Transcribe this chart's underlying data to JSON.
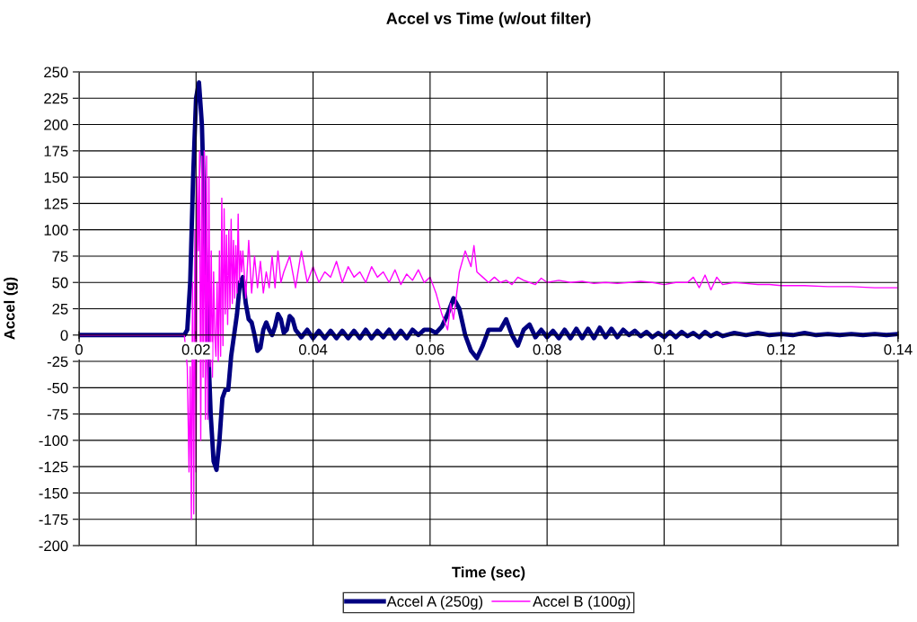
{
  "chart_data": {
    "type": "line",
    "title": "Accel vs Time (w/out filter)",
    "xlabel": "Time (sec)",
    "ylabel": "Accel (g)",
    "xlim": [
      0,
      0.14
    ],
    "xticks": [
      0,
      0.02,
      0.04,
      0.06,
      0.08,
      0.1,
      0.12,
      0.14
    ],
    "ylim": [
      -200,
      250
    ],
    "yticks": [
      -200,
      -175,
      -150,
      -125,
      -100,
      -75,
      -50,
      -25,
      0,
      25,
      50,
      75,
      100,
      125,
      150,
      175,
      200,
      225,
      250
    ],
    "grid": true,
    "legend": "bottom",
    "line_style": "solid",
    "marker": "none",
    "series": [
      {
        "name": "Accel A (250g)",
        "color": "#000080",
        "x": [
          0,
          0.018,
          0.0185,
          0.019,
          0.0195,
          0.02,
          0.0205,
          0.021,
          0.0215,
          0.022,
          0.0225,
          0.023,
          0.0235,
          0.024,
          0.0245,
          0.025,
          0.0255,
          0.026,
          0.027,
          0.0275,
          0.028,
          0.0285,
          0.029,
          0.0295,
          0.03,
          0.0305,
          0.031,
          0.0315,
          0.032,
          0.0325,
          0.033,
          0.0335,
          0.034,
          0.0345,
          0.035,
          0.0355,
          0.036,
          0.0365,
          0.037,
          0.038,
          0.039,
          0.04,
          0.041,
          0.042,
          0.043,
          0.044,
          0.045,
          0.046,
          0.047,
          0.048,
          0.049,
          0.05,
          0.051,
          0.052,
          0.053,
          0.054,
          0.055,
          0.056,
          0.057,
          0.058,
          0.059,
          0.06,
          0.061,
          0.062,
          0.063,
          0.064,
          0.065,
          0.066,
          0.067,
          0.068,
          0.069,
          0.07,
          0.071,
          0.072,
          0.073,
          0.074,
          0.075,
          0.076,
          0.077,
          0.078,
          0.079,
          0.08,
          0.081,
          0.082,
          0.083,
          0.084,
          0.085,
          0.086,
          0.087,
          0.088,
          0.089,
          0.09,
          0.091,
          0.092,
          0.093,
          0.094,
          0.095,
          0.096,
          0.097,
          0.098,
          0.099,
          0.1,
          0.101,
          0.102,
          0.103,
          0.104,
          0.105,
          0.106,
          0.107,
          0.108,
          0.109,
          0.11,
          0.112,
          0.114,
          0.116,
          0.118,
          0.12,
          0.122,
          0.124,
          0.126,
          0.128,
          0.13,
          0.132,
          0.134,
          0.136,
          0.138,
          0.14
        ],
        "values": [
          0,
          0,
          5,
          50,
          150,
          225,
          240,
          200,
          100,
          0,
          -75,
          -120,
          -128,
          -100,
          -60,
          -52,
          -52,
          -20,
          20,
          50,
          55,
          30,
          15,
          12,
          0,
          -15,
          -12,
          5,
          12,
          5,
          0,
          8,
          20,
          15,
          2,
          5,
          18,
          15,
          5,
          -2,
          5,
          -3,
          4,
          -3,
          4,
          -3,
          4,
          -3,
          4,
          -3,
          5,
          -3,
          4,
          -2,
          5,
          -3,
          4,
          -3,
          5,
          0,
          5,
          5,
          2,
          8,
          20,
          35,
          25,
          0,
          -15,
          -22,
          -10,
          5,
          5,
          5,
          15,
          0,
          -10,
          5,
          10,
          -2,
          5,
          -2,
          4,
          -3,
          5,
          -3,
          6,
          -3,
          6,
          -3,
          7,
          -2,
          6,
          -2,
          5,
          0,
          4,
          -1,
          3,
          -2,
          2,
          -2,
          3,
          -2,
          3,
          -1,
          2,
          -2,
          3,
          -1,
          2,
          -1,
          2,
          0,
          2,
          0,
          1,
          0,
          2,
          0,
          1,
          0,
          1,
          0,
          1,
          0,
          1
        ]
      },
      {
        "name": "Accel B (100g)",
        "color": "#ff00ff",
        "x": [
          0,
          0.018,
          0.0185,
          0.0188,
          0.019,
          0.0192,
          0.0194,
          0.0196,
          0.0198,
          0.02,
          0.0202,
          0.0204,
          0.0206,
          0.0208,
          0.021,
          0.0212,
          0.0214,
          0.0216,
          0.0218,
          0.022,
          0.0222,
          0.0224,
          0.0226,
          0.0228,
          0.023,
          0.0232,
          0.0234,
          0.0236,
          0.0238,
          0.024,
          0.0242,
          0.0244,
          0.0246,
          0.0248,
          0.025,
          0.0252,
          0.0254,
          0.0256,
          0.0258,
          0.026,
          0.0262,
          0.0264,
          0.0266,
          0.0268,
          0.027,
          0.0272,
          0.0274,
          0.0276,
          0.0278,
          0.028,
          0.0285,
          0.029,
          0.0295,
          0.03,
          0.0305,
          0.031,
          0.0315,
          0.032,
          0.0325,
          0.033,
          0.0335,
          0.034,
          0.0345,
          0.035,
          0.036,
          0.037,
          0.038,
          0.039,
          0.04,
          0.041,
          0.042,
          0.043,
          0.044,
          0.045,
          0.046,
          0.047,
          0.048,
          0.049,
          0.05,
          0.051,
          0.052,
          0.053,
          0.054,
          0.055,
          0.056,
          0.057,
          0.058,
          0.059,
          0.06,
          0.061,
          0.062,
          0.063,
          0.0635,
          0.064,
          0.065,
          0.066,
          0.067,
          0.0675,
          0.068,
          0.069,
          0.07,
          0.071,
          0.072,
          0.073,
          0.074,
          0.075,
          0.076,
          0.077,
          0.078,
          0.079,
          0.08,
          0.082,
          0.084,
          0.086,
          0.088,
          0.09,
          0.092,
          0.094,
          0.096,
          0.098,
          0.1,
          0.102,
          0.104,
          0.105,
          0.106,
          0.107,
          0.108,
          0.109,
          0.11,
          0.112,
          0.114,
          0.116,
          0.118,
          0.12,
          0.124,
          0.128,
          0.132,
          0.136,
          0.14
        ],
        "values": [
          0,
          0,
          -30,
          -130,
          -30,
          -175,
          50,
          -170,
          100,
          -130,
          150,
          80,
          175,
          -100,
          170,
          -40,
          175,
          -80,
          170,
          -80,
          150,
          -30,
          80,
          -40,
          60,
          0,
          -20,
          50,
          -25,
          80,
          -20,
          130,
          -10,
          120,
          20,
          95,
          10,
          100,
          25,
          110,
          30,
          90,
          35,
          85,
          40,
          115,
          50,
          80,
          60,
          80,
          35,
          90,
          40,
          75,
          45,
          70,
          40,
          60,
          45,
          75,
          45,
          80,
          50,
          60,
          75,
          45,
          80,
          50,
          65,
          50,
          60,
          55,
          70,
          50,
          65,
          55,
          60,
          50,
          65,
          55,
          60,
          50,
          62,
          48,
          58,
          52,
          62,
          50,
          55,
          40,
          20,
          5,
          30,
          15,
          60,
          80,
          65,
          85,
          60,
          55,
          50,
          55,
          50,
          52,
          48,
          55,
          52,
          50,
          48,
          54,
          50,
          52,
          50,
          51,
          49,
          50,
          49,
          50,
          51,
          50,
          48,
          50,
          50,
          55,
          45,
          57,
          43,
          55,
          48,
          50,
          49,
          48,
          48,
          47,
          47,
          46,
          46,
          45,
          45
        ]
      }
    ]
  }
}
